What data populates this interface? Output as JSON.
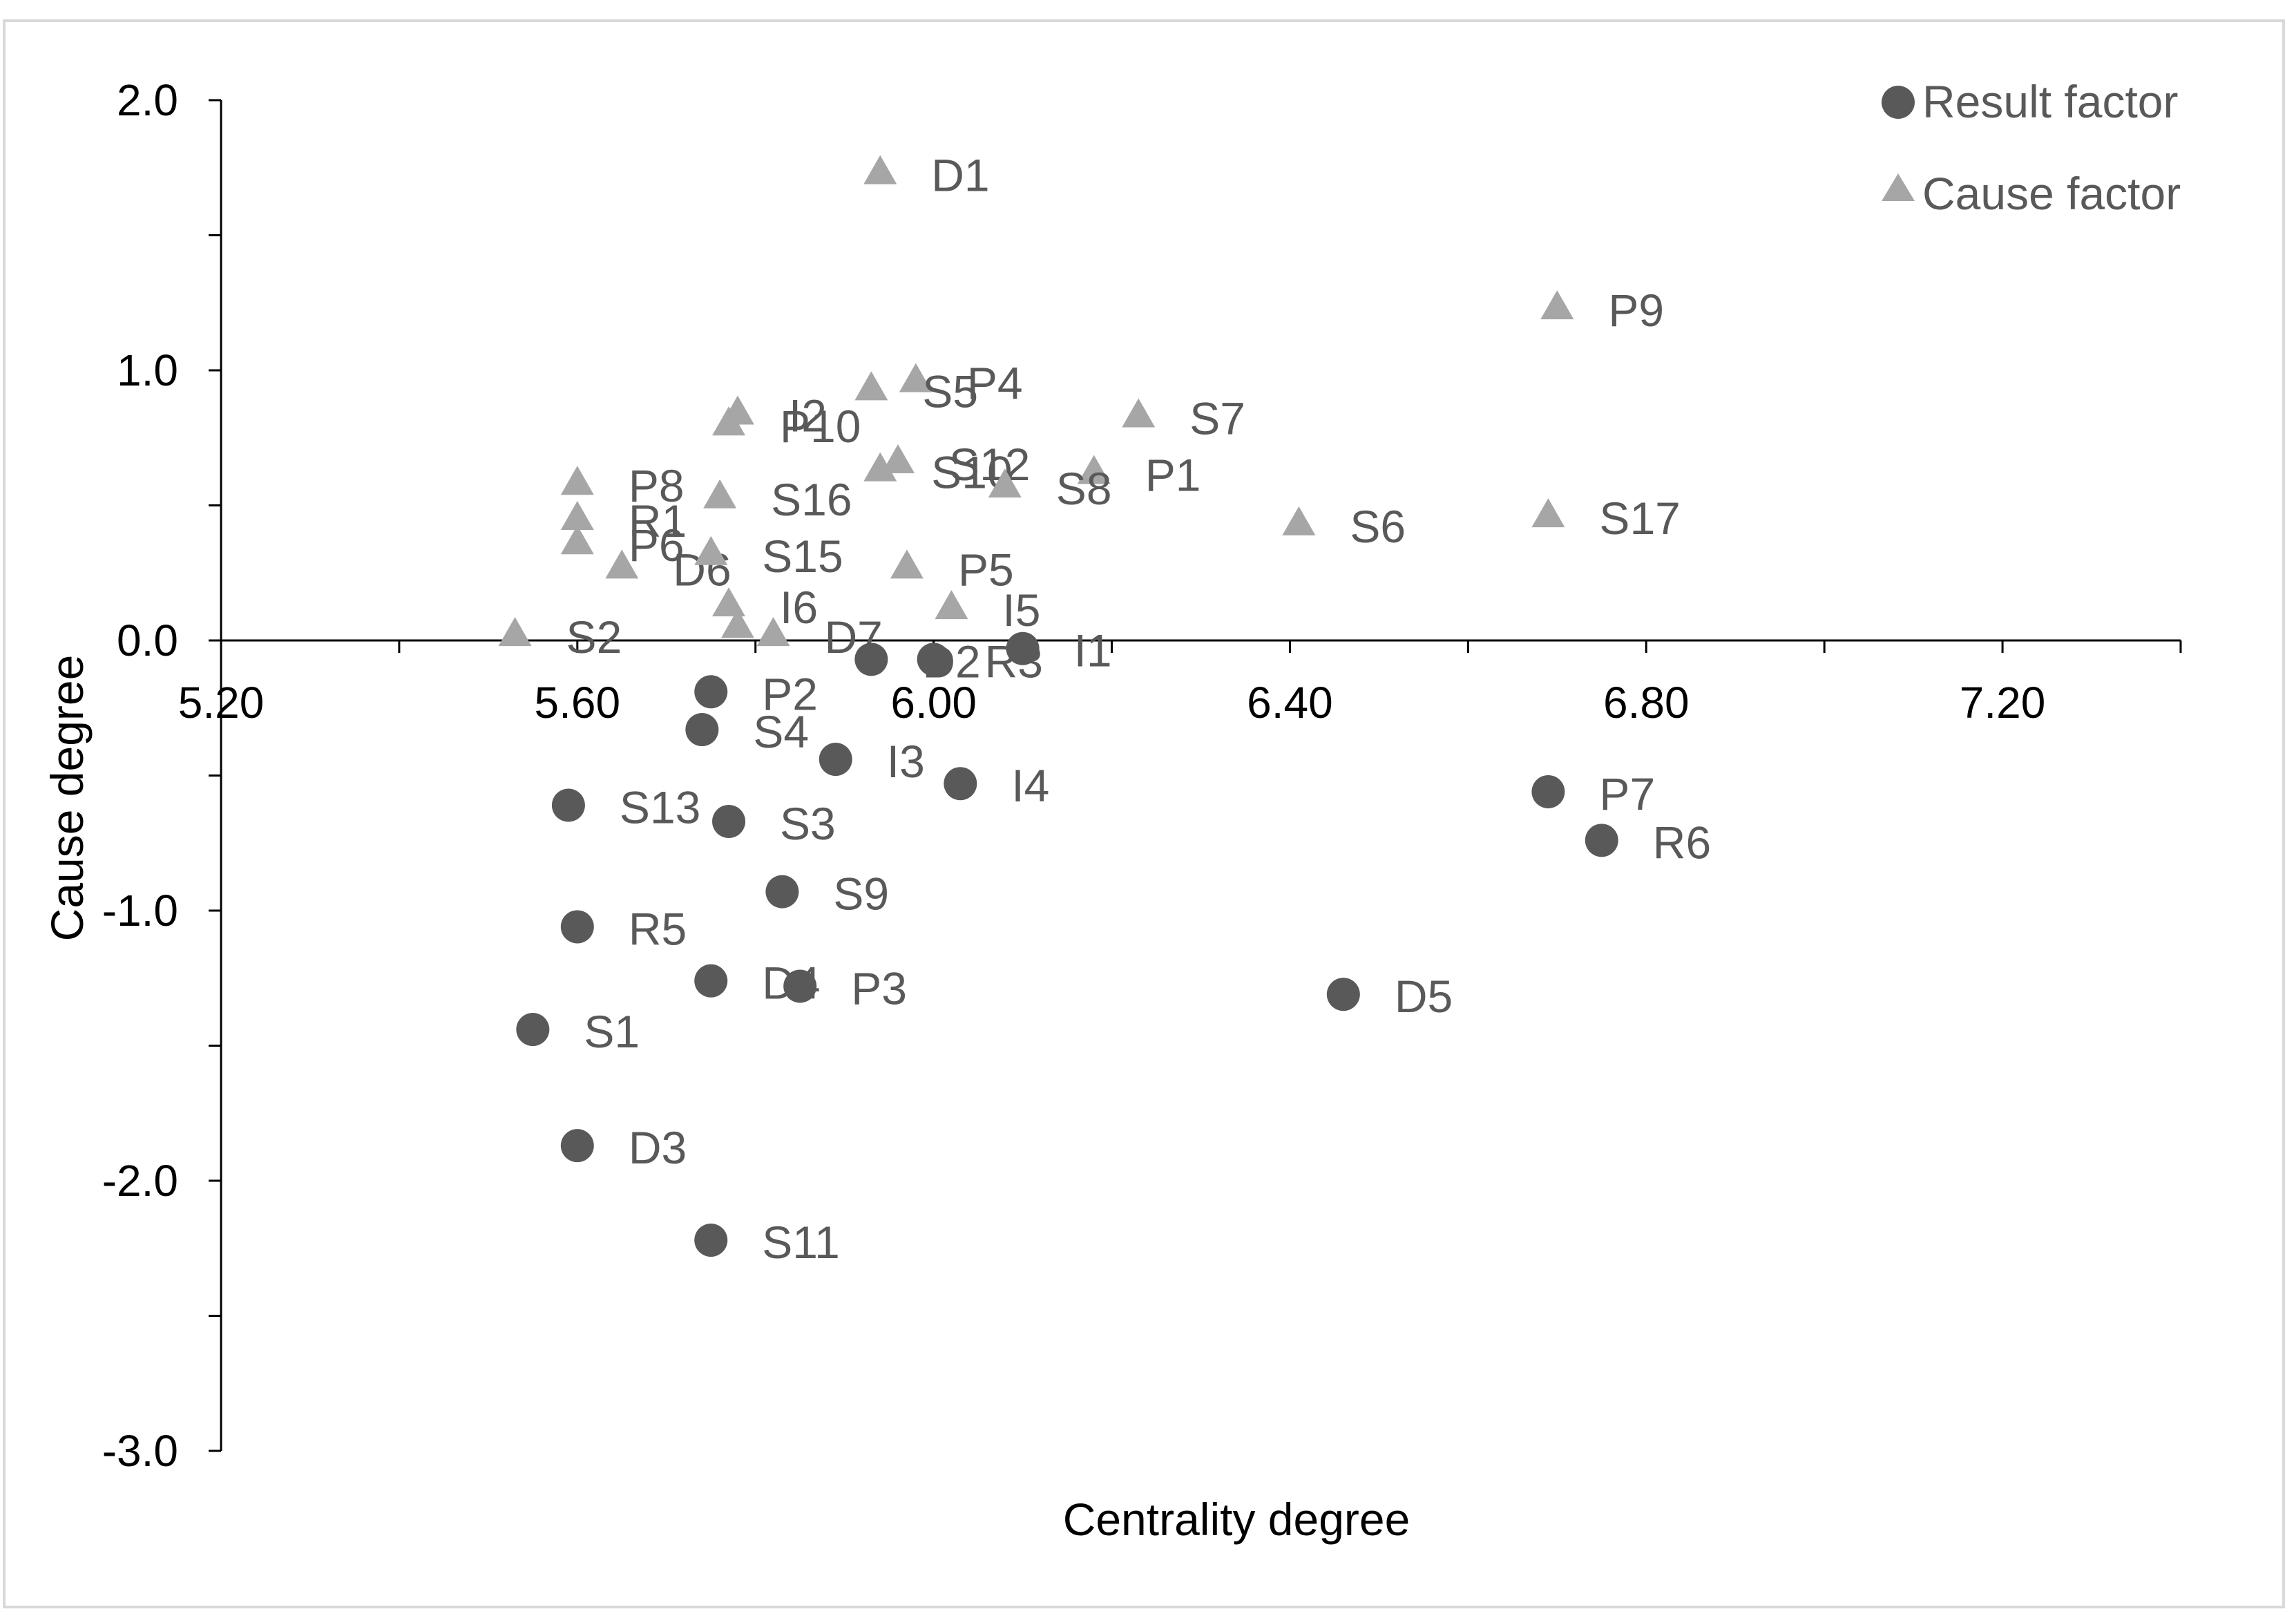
{
  "chart_data": {
    "type": "scatter",
    "xlabel": "Centrality degree",
    "ylabel": "Cause degree",
    "xlim": [
      5.2,
      7.4
    ],
    "ylim": [
      -3.0,
      2.0
    ],
    "x_ticks": [
      "5.20",
      "5.60",
      "6.00",
      "6.40",
      "6.80",
      "7.20"
    ],
    "y_ticks": [
      "2.0",
      "1.0",
      "0.0",
      "-1.0",
      "-2.0",
      "-3.0"
    ],
    "grid": false,
    "legend_position": "top-right",
    "colors": {
      "result": "#595959",
      "cause": "#a6a6a6"
    },
    "series": [
      {
        "name": "Result factor",
        "marker": "circle",
        "points": [
          {
            "label": "D2",
            "x": 5.93,
            "y": -0.07
          },
          {
            "label": "R3",
            "x": 6.0,
            "y": -0.07
          },
          {
            "label": "I1",
            "x": 6.1,
            "y": -0.03
          },
          {
            "label": "P2",
            "x": 5.75,
            "y": -0.19
          },
          {
            "label": "S4",
            "x": 5.74,
            "y": -0.33
          },
          {
            "label": "I3",
            "x": 5.89,
            "y": -0.44
          },
          {
            "label": "I4",
            "x": 6.03,
            "y": -0.53
          },
          {
            "label": "S13",
            "x": 5.59,
            "y": -0.61
          },
          {
            "label": "S3",
            "x": 5.77,
            "y": -0.67
          },
          {
            "label": "P7",
            "x": 6.69,
            "y": -0.56
          },
          {
            "label": "R6",
            "x": 6.75,
            "y": -0.74
          },
          {
            "label": "S9",
            "x": 5.83,
            "y": -0.93
          },
          {
            "label": "R5",
            "x": 5.6,
            "y": -1.06
          },
          {
            "label": "D4",
            "x": 5.75,
            "y": -1.26
          },
          {
            "label": "P3",
            "x": 5.85,
            "y": -1.28
          },
          {
            "label": "D5",
            "x": 6.46,
            "y": -1.31
          },
          {
            "label": "S1",
            "x": 5.55,
            "y": -1.44
          },
          {
            "label": "D3",
            "x": 5.6,
            "y": -1.87
          },
          {
            "label": "S11",
            "x": 5.75,
            "y": -2.22
          }
        ]
      },
      {
        "name": "Cause factor",
        "marker": "triangle",
        "points": [
          {
            "label": "D1",
            "x": 5.94,
            "y": 1.73
          },
          {
            "label": "P9",
            "x": 6.7,
            "y": 1.23
          },
          {
            "label": "I2",
            "x": 5.78,
            "y": 0.84
          },
          {
            "label": "P4",
            "x": 5.98,
            "y": 0.96
          },
          {
            "label": "S5",
            "x": 5.93,
            "y": 0.93
          },
          {
            "label": "P10",
            "x": 5.77,
            "y": 0.8
          },
          {
            "label": "S7",
            "x": 6.23,
            "y": 0.83
          },
          {
            "label": "S12",
            "x": 5.96,
            "y": 0.66
          },
          {
            "label": "P1",
            "x": 6.18,
            "y": 0.62
          },
          {
            "label": "S10",
            "x": 5.94,
            "y": 0.63
          },
          {
            "label": "S8",
            "x": 6.08,
            "y": 0.57
          },
          {
            "label": "P8",
            "x": 5.6,
            "y": 0.58
          },
          {
            "label": "S16",
            "x": 5.76,
            "y": 0.53
          },
          {
            "label": "R1",
            "x": 5.6,
            "y": 0.45
          },
          {
            "label": "S6",
            "x": 6.41,
            "y": 0.43
          },
          {
            "label": "S17",
            "x": 6.69,
            "y": 0.46
          },
          {
            "label": "P6",
            "x": 5.6,
            "y": 0.36
          },
          {
            "label": "D6",
            "x": 5.65,
            "y": 0.27
          },
          {
            "label": "S15",
            "x": 5.75,
            "y": 0.32
          },
          {
            "label": "P5",
            "x": 5.97,
            "y": 0.27
          },
          {
            "label": "I6",
            "x": 5.77,
            "y": 0.13
          },
          {
            "label": "I5",
            "x": 6.02,
            "y": 0.12
          },
          {
            "label": "D7",
            "x": 5.82,
            "y": 0.02
          },
          {
            "label": "",
            "x": 5.78,
            "y": 0.05
          },
          {
            "label": "S2",
            "x": 5.53,
            "y": 0.02
          }
        ]
      }
    ]
  }
}
